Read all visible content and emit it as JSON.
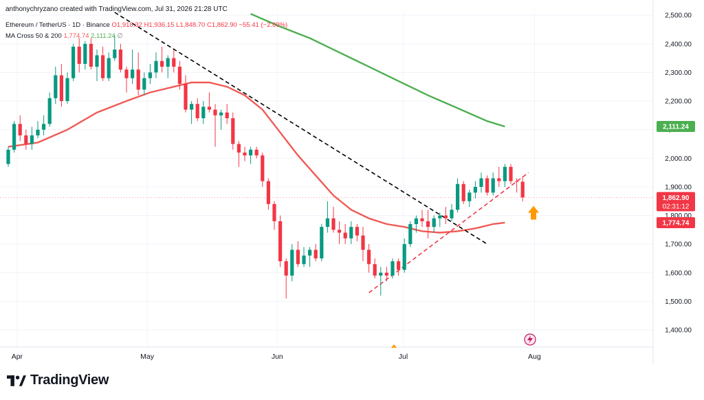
{
  "header": {
    "author_line": "anthonychryzano created with TradingView.com, Jul 31, 2026 21:28 UTC"
  },
  "legend": {
    "symbol": "Ethereum / TetherUS · 1D · Binance",
    "open": "O1,918.32",
    "high": "H1,936.15",
    "low": "L1,848.70",
    "close": "C1,862.90",
    "change": "−55.41 (−2.89%)",
    "ma_label": "MA Cross 50 & 200",
    "ma50": "1,774.74",
    "ma200": "2,111.24",
    "ma_extra": "∅"
  },
  "footer": {
    "brand": "TradingView"
  },
  "colors": {
    "up": "#089981",
    "down": "#f23645",
    "ma50": "#f05a55",
    "ma200": "#4caf50",
    "trendline": "#000000",
    "support": "#f23645",
    "arrow": "#ff9800",
    "grid": "#f0f3fa"
  },
  "chart_data": {
    "type": "candlestick",
    "x_ticks": [
      "Apr",
      "May",
      "Jun",
      "Jul",
      "Aug"
    ],
    "y_ticks": [
      "1,400.00",
      "1,500.00",
      "1,600.00",
      "1,700.00",
      "1,800.00",
      "1,900.00",
      "2,000.00",
      "2,100.00",
      "2,200.00",
      "2,300.00",
      "2,400.00",
      "2,500.00"
    ],
    "ylim": [
      1340,
      2510
    ],
    "price_labels": {
      "ma200": "2,111.24",
      "last_price": "1,862.90",
      "countdown": "02:31:12",
      "ma50": "1,774.74"
    },
    "candles": [
      [
        1980,
        2040,
        1970,
        2030
      ],
      [
        2030,
        2130,
        2020,
        2120
      ],
      [
        2120,
        2150,
        2060,
        2080
      ],
      [
        2080,
        2100,
        2030,
        2050
      ],
      [
        2050,
        2110,
        2030,
        2080
      ],
      [
        2080,
        2130,
        2070,
        2100
      ],
      [
        2100,
        2150,
        2080,
        2120
      ],
      [
        2120,
        2230,
        2110,
        2210
      ],
      [
        2210,
        2320,
        2190,
        2290
      ],
      [
        2290,
        2330,
        2180,
        2200
      ],
      [
        2200,
        2300,
        2190,
        2280
      ],
      [
        2280,
        2400,
        2270,
        2390
      ],
      [
        2390,
        2420,
        2300,
        2330
      ],
      [
        2330,
        2410,
        2310,
        2400
      ],
      [
        2400,
        2420,
        2310,
        2320
      ],
      [
        2320,
        2380,
        2270,
        2360
      ],
      [
        2360,
        2390,
        2270,
        2280
      ],
      [
        2280,
        2370,
        2270,
        2350
      ],
      [
        2350,
        2430,
        2340,
        2380
      ],
      [
        2380,
        2400,
        2300,
        2310
      ],
      [
        2310,
        2320,
        2230,
        2280
      ],
      [
        2280,
        2380,
        2260,
        2310
      ],
      [
        2310,
        2370,
        2220,
        2240
      ],
      [
        2240,
        2300,
        2220,
        2280
      ],
      [
        2280,
        2330,
        2260,
        2300
      ],
      [
        2300,
        2370,
        2280,
        2340
      ],
      [
        2340,
        2390,
        2300,
        2320
      ],
      [
        2320,
        2360,
        2280,
        2350
      ],
      [
        2350,
        2380,
        2300,
        2320
      ],
      [
        2320,
        2340,
        2240,
        2260
      ],
      [
        2260,
        2290,
        2160,
        2170
      ],
      [
        2170,
        2200,
        2120,
        2190
      ],
      [
        2190,
        2210,
        2130,
        2140
      ],
      [
        2140,
        2200,
        2120,
        2180
      ],
      [
        2180,
        2230,
        2160,
        2170
      ],
      [
        2170,
        2190,
        2040,
        2150
      ],
      [
        2150,
        2170,
        2100,
        2160
      ],
      [
        2160,
        2190,
        2120,
        2140
      ],
      [
        2140,
        2160,
        2030,
        2050
      ],
      [
        2050,
        2060,
        1970,
        2020
      ],
      [
        2020,
        2040,
        1990,
        2010
      ],
      [
        2010,
        2040,
        1980,
        2030
      ],
      [
        2030,
        2040,
        2000,
        2010
      ],
      [
        2010,
        2020,
        1900,
        1920
      ],
      [
        1920,
        1930,
        1820,
        1840
      ],
      [
        1840,
        1850,
        1750,
        1780
      ],
      [
        1780,
        1800,
        1620,
        1640
      ],
      [
        1640,
        1650,
        1510,
        1590
      ],
      [
        1590,
        1700,
        1570,
        1680
      ],
      [
        1680,
        1710,
        1620,
        1630
      ],
      [
        1630,
        1690,
        1620,
        1660
      ],
      [
        1660,
        1690,
        1620,
        1680
      ],
      [
        1680,
        1700,
        1640,
        1650
      ],
      [
        1650,
        1770,
        1640,
        1760
      ],
      [
        1760,
        1850,
        1740,
        1790
      ],
      [
        1790,
        1830,
        1740,
        1750
      ],
      [
        1750,
        1780,
        1700,
        1740
      ],
      [
        1740,
        1770,
        1700,
        1720
      ],
      [
        1720,
        1780,
        1700,
        1760
      ],
      [
        1760,
        1770,
        1710,
        1730
      ],
      [
        1730,
        1760,
        1640,
        1680
      ],
      [
        1680,
        1700,
        1600,
        1630
      ],
      [
        1630,
        1650,
        1580,
        1590
      ],
      [
        1590,
        1620,
        1520,
        1600
      ],
      [
        1600,
        1620,
        1570,
        1590
      ],
      [
        1590,
        1650,
        1580,
        1640
      ],
      [
        1640,
        1650,
        1590,
        1610
      ],
      [
        1610,
        1720,
        1600,
        1700
      ],
      [
        1700,
        1780,
        1690,
        1770
      ],
      [
        1770,
        1800,
        1740,
        1790
      ],
      [
        1790,
        1820,
        1760,
        1780
      ],
      [
        1780,
        1820,
        1720,
        1760
      ],
      [
        1760,
        1800,
        1740,
        1790
      ],
      [
        1790,
        1810,
        1760,
        1800
      ],
      [
        1800,
        1830,
        1770,
        1790
      ],
      [
        1790,
        1840,
        1780,
        1820
      ],
      [
        1820,
        1930,
        1810,
        1910
      ],
      [
        1910,
        1920,
        1840,
        1850
      ],
      [
        1850,
        1890,
        1830,
        1880
      ],
      [
        1880,
        1920,
        1860,
        1900
      ],
      [
        1900,
        1950,
        1880,
        1930
      ],
      [
        1930,
        1940,
        1870,
        1880
      ],
      [
        1880,
        1950,
        1870,
        1930
      ],
      [
        1930,
        1970,
        1900,
        1920
      ],
      [
        1920,
        1980,
        1900,
        1970
      ],
      [
        1970,
        1980,
        1910,
        1920
      ],
      [
        1920,
        1930,
        1880,
        1918
      ],
      [
        1918,
        1936,
        1849,
        1863
      ]
    ],
    "ma50_line": [
      [
        0,
        2040
      ],
      [
        5,
        2055
      ],
      [
        10,
        2100
      ],
      [
        15,
        2160
      ],
      [
        20,
        2200
      ],
      [
        24,
        2230
      ],
      [
        28,
        2250
      ],
      [
        31,
        2265
      ],
      [
        34,
        2265
      ],
      [
        37,
        2250
      ],
      [
        40,
        2220
      ],
      [
        43,
        2170
      ],
      [
        46,
        2090
      ],
      [
        49,
        2010
      ],
      [
        52,
        1940
      ],
      [
        55,
        1870
      ],
      [
        58,
        1820
      ],
      [
        61,
        1790
      ],
      [
        64,
        1770
      ],
      [
        67,
        1760
      ],
      [
        70,
        1745
      ],
      [
        73,
        1740
      ],
      [
        76,
        1745
      ],
      [
        79,
        1755
      ],
      [
        82,
        1770
      ],
      [
        84,
        1775
      ]
    ],
    "ma200_line": [
      [
        41,
        2505
      ],
      [
        46,
        2460
      ],
      [
        51,
        2420
      ],
      [
        56,
        2370
      ],
      [
        61,
        2320
      ],
      [
        66,
        2270
      ],
      [
        71,
        2220
      ],
      [
        76,
        2175
      ],
      [
        81,
        2130
      ],
      [
        84,
        2111
      ]
    ],
    "resistance_line": [
      [
        18,
        2510
      ],
      [
        81,
        1700
      ]
    ],
    "support_line": [
      [
        61,
        1530
      ],
      [
        88,
        1950
      ]
    ]
  }
}
